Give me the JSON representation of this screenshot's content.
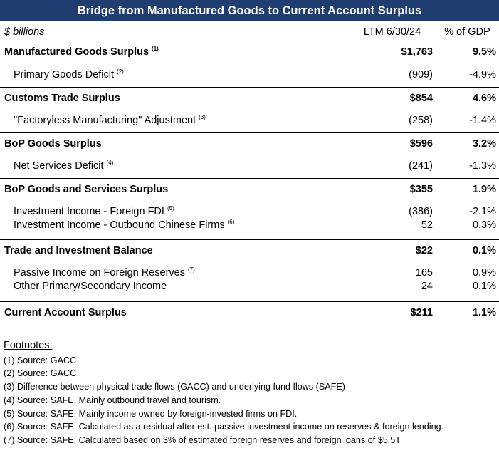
{
  "title": "Bridge from Manufactured Goods to Current Account Surplus",
  "header": {
    "units": "$ billions",
    "col1": "LTM 6/30/24",
    "col2": "% of GDP"
  },
  "rows": [
    {
      "label": "Manufactured Goods Surplus",
      "note": "(1)",
      "value": "$1,763",
      "pct": "9.5%",
      "bold": true
    },
    {
      "label": "Primary Goods Deficit",
      "note": "(2)",
      "value": "(909)",
      "pct": "-4.9%",
      "bold": false
    },
    {
      "label": "Customs Trade Surplus",
      "note": "",
      "value": "$854",
      "pct": "4.6%",
      "bold": true
    },
    {
      "label": "\"Factoryless Manufacturing\" Adjustment",
      "note": "(3)",
      "value": "(258)",
      "pct": "-1.4%",
      "bold": false
    },
    {
      "label": "BoP Goods Surplus",
      "note": "",
      "value": "$596",
      "pct": "3.2%",
      "bold": true
    },
    {
      "label": "Net Services Deficit",
      "note": "(4)",
      "value": "(241)",
      "pct": "-1.3%",
      "bold": false
    },
    {
      "label": "BoP Goods and Services Surplus",
      "note": "",
      "value": "$355",
      "pct": "1.9%",
      "bold": true
    },
    {
      "label": "Investment Income - Foreign FDI",
      "note": "(5)",
      "value": "(386)",
      "pct": "-2.1%",
      "bold": false
    },
    {
      "label": "Investment Income - Outbound Chinese Firms",
      "note": "(6)",
      "value": "52",
      "pct": "0.3%",
      "bold": false
    },
    {
      "label": "Trade and Investment Balance",
      "note": "",
      "value": "$22",
      "pct": "0.1%",
      "bold": true
    },
    {
      "label": "Passive Income on Foreign Reserves",
      "note": "(7)",
      "value": "165",
      "pct": "0.9%",
      "bold": false
    },
    {
      "label": "Other Primary/Secondary Income",
      "note": "",
      "value": "24",
      "pct": "0.1%",
      "bold": false
    },
    {
      "label": "Current Account Surplus",
      "note": "",
      "value": "$211",
      "pct": "1.1%",
      "bold": true
    }
  ],
  "footnotes": {
    "title": "Footnotes:",
    "items": [
      "(1) Source: GACC",
      "(2) Source: GACC",
      "(3) Difference between physical trade flows (GACC) and underlying fund flows (SAFE)",
      "(4) Source: SAFE. Mainly outbound travel and tourism.",
      "(5) Source: SAFE. Mainly income owned by foreign-invested firms on FDI.",
      "(6) Source: SAFE. Calculated as a residual after est. passive investment income on reserves & foreign lending.",
      "(7) Source: SAFE. Calculated based on 3% of estimated foreign reserves and foreign loans of $5.5T"
    ]
  }
}
